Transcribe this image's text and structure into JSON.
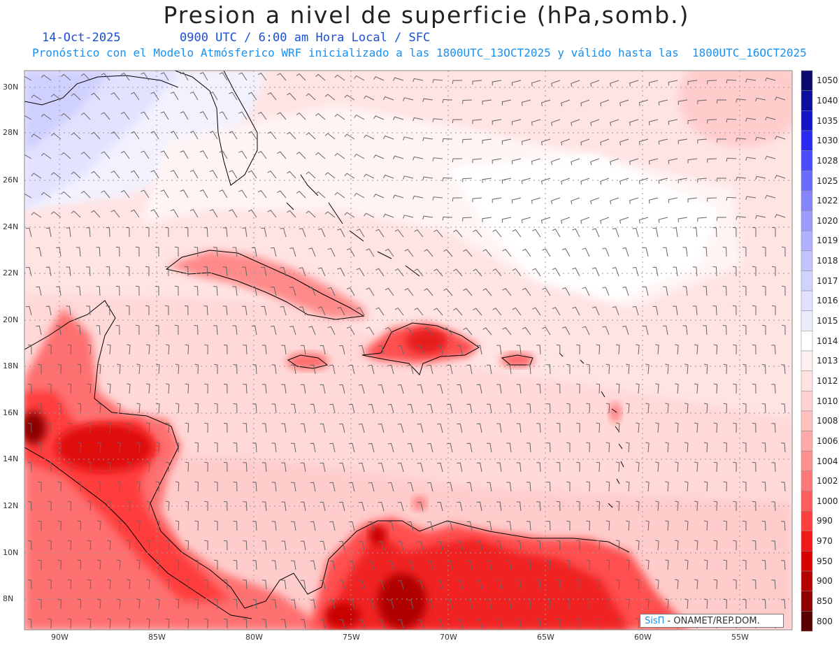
{
  "title": "Presion a nivel de superficie (hPa,somb.)",
  "date": "14-Oct-2025",
  "valid_time": "0900 UTC / 6:00 am Hora Local / SFC",
  "forecast_note": "Pronóstico con el Modelo Atmósferico WRF inicializado a las 1800UTC_13OCT2025 y válido hasta las  1800UTC_16OCT2025",
  "credit": {
    "logo": "SisΠ",
    "text": " - ONAMET/REP.DOM."
  },
  "lat_labels": [
    "30N",
    "28N",
    "26N",
    "24N",
    "22N",
    "20N",
    "18N",
    "16N",
    "14N",
    "12N",
    "10N",
    "8N"
  ],
  "lon_labels": [
    "90W",
    "85W",
    "80W",
    "75W",
    "70W",
    "65W",
    "60W",
    "55W"
  ],
  "colorbar": {
    "levels": [
      "1050",
      "1040",
      "1035",
      "1030",
      "1028",
      "1025",
      "1022",
      "1020",
      "1019",
      "1018",
      "1017",
      "1016",
      "1015",
      "1014",
      "1013",
      "1012",
      "1010",
      "1008",
      "1006",
      "1004",
      "1002",
      "1000",
      "990",
      "970",
      "950",
      "900",
      "850",
      "800"
    ],
    "colors": [
      "#0a0a6e",
      "#0d0d9e",
      "#1414c8",
      "#2b2bf0",
      "#4a4aff",
      "#6b6bff",
      "#8585ff",
      "#9c9cff",
      "#b0b0ff",
      "#c2c2ff",
      "#d2d2ff",
      "#e0e0ff",
      "#ececff",
      "#ffffff",
      "#fff0f0",
      "#ffe2e2",
      "#ffd2d2",
      "#ffc0c0",
      "#ffaaaa",
      "#ff9090",
      "#ff7878",
      "#ff5e5e",
      "#ff3e3e",
      "#f21818",
      "#d80000",
      "#b50000",
      "#8e0000",
      "#5a0000"
    ]
  },
  "colors": {
    "land_outline": "#000000",
    "wind_barb": "#666666",
    "grid": "#999999",
    "ocean_base": "#ffe6e6"
  }
}
